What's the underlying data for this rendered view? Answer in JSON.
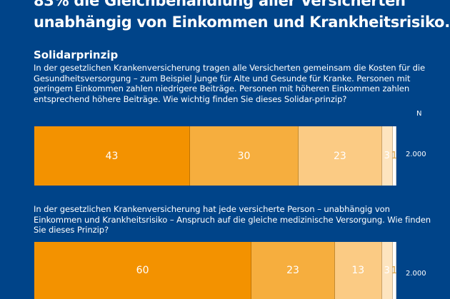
{
  "title_lines": [
    "83% die Gleichbehandlung aller Versicherten",
    "unabhängig von Einkommen und Krankheitsrisiko."
  ],
  "subtitle": "Solidarprinzip",
  "n_header": "N",
  "chart_data": [
    {
      "type": "bar",
      "orientation": "horizontal-stacked",
      "question": "In der gesetzlichen Krankenversicherung tragen alle Versicherten gemeinsam die Kosten für die Gesundheitsversorgung – zum Beispiel Junge für Alte und Gesunde für Kranke. Personen mit geringem Einkommen zahlen niedrigere Beiträge. Personen mit höheren Einkommen zahlen entsprechend höhere Beiträge. Wie wichtig finden Sie dieses Solidar-prinzip?",
      "values": [
        43,
        30,
        23,
        3,
        1
      ],
      "labels": [
        "43",
        "30",
        "23",
        "3",
        "1"
      ],
      "colors": [
        "#f39200",
        "#f6ae3e",
        "#fbcb84",
        "#fde4bf",
        "#ffffff"
      ],
      "n": "2.000"
    },
    {
      "type": "bar",
      "orientation": "horizontal-stacked",
      "question": "In der gesetzlichen Krankenversicherung hat jede versicherte Person – unabhängig von Einkommen und Krankheitsrisiko – Anspruch auf die gleiche medizinische Versorgung. Wie finden Sie dieses Prinzip?",
      "values": [
        60,
        23,
        13,
        3,
        1
      ],
      "labels": [
        "60",
        "23",
        "13",
        "3",
        "1"
      ],
      "colors": [
        "#f39200",
        "#f6ae3e",
        "#fbcb84",
        "#fde4bf",
        "#ffffff"
      ],
      "n": "2.000"
    }
  ]
}
